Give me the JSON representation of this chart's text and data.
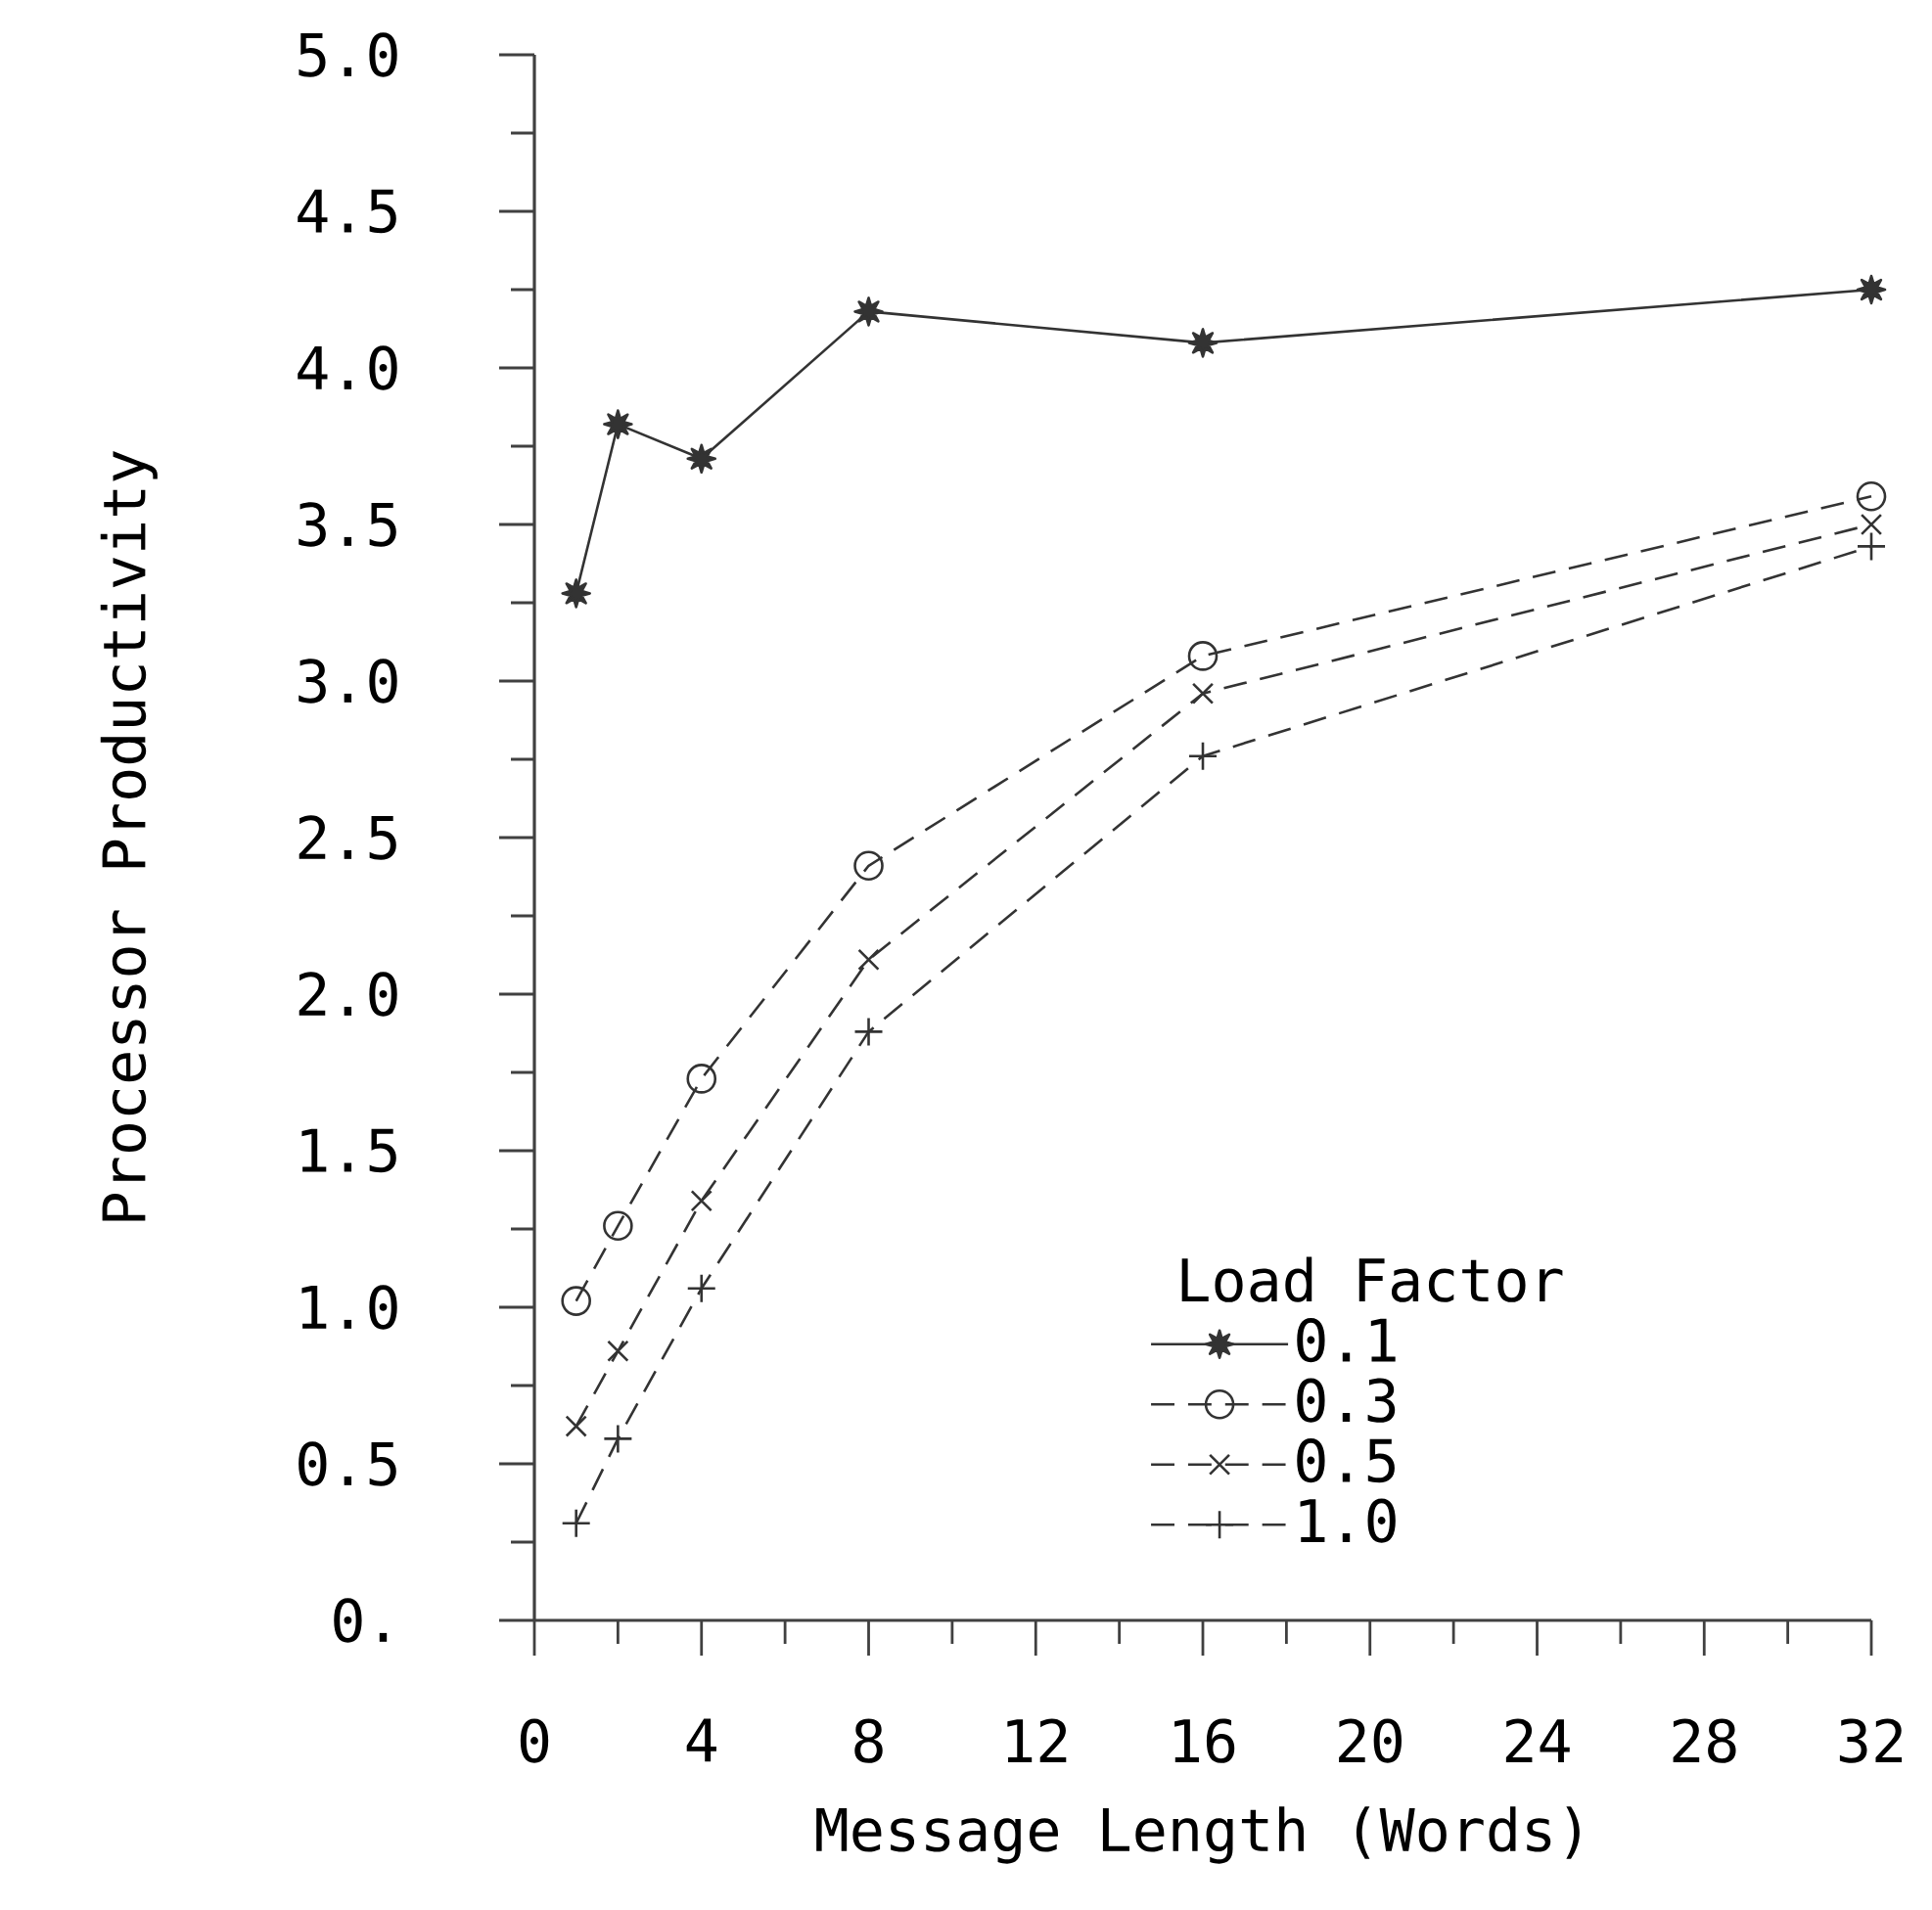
{
  "chart_data": {
    "type": "line",
    "xlabel": "Message Length (Words)",
    "ylabel": "Processor Productivity",
    "legend_title": "Load Factor",
    "x": [
      1,
      2,
      4,
      8,
      16,
      32
    ],
    "series": [
      {
        "name": "0.1",
        "color": "#333333",
        "marker": "star",
        "line_style": "solid",
        "values": [
          3.28,
          3.82,
          3.71,
          4.18,
          4.08,
          4.25
        ]
      },
      {
        "name": "0.3",
        "color": "#333333",
        "marker": "circle",
        "line_style": "dashed",
        "values": [
          1.02,
          1.26,
          1.73,
          2.41,
          3.08,
          3.59
        ]
      },
      {
        "name": "0.5",
        "color": "#333333",
        "marker": "cross",
        "line_style": "dashed",
        "values": [
          0.62,
          0.86,
          1.34,
          2.11,
          2.96,
          3.5
        ]
      },
      {
        "name": "1.0",
        "color": "#333333",
        "marker": "plus",
        "line_style": "dashed",
        "values": [
          0.31,
          0.58,
          1.06,
          1.88,
          2.76,
          3.43
        ]
      }
    ],
    "xlim": [
      0,
      32
    ],
    "ylim": [
      0,
      5
    ],
    "xticks": [
      0,
      4,
      8,
      12,
      16,
      20,
      24,
      28,
      32
    ],
    "yticks": [
      {
        "value": 0,
        "label": "0."
      },
      {
        "value": 0.5,
        "label": "0.5"
      },
      {
        "value": 1,
        "label": "1.0"
      },
      {
        "value": 1.5,
        "label": "1.5"
      },
      {
        "value": 2,
        "label": "2.0"
      },
      {
        "value": 2.5,
        "label": "2.5"
      },
      {
        "value": 3,
        "label": "3.0"
      },
      {
        "value": 3.5,
        "label": "3.5"
      },
      {
        "value": 4,
        "label": "4.0"
      },
      {
        "value": 4.5,
        "label": "4.5"
      },
      {
        "value": 5,
        "label": "5.0"
      }
    ],
    "legend": "bottom right",
    "grid": false
  }
}
